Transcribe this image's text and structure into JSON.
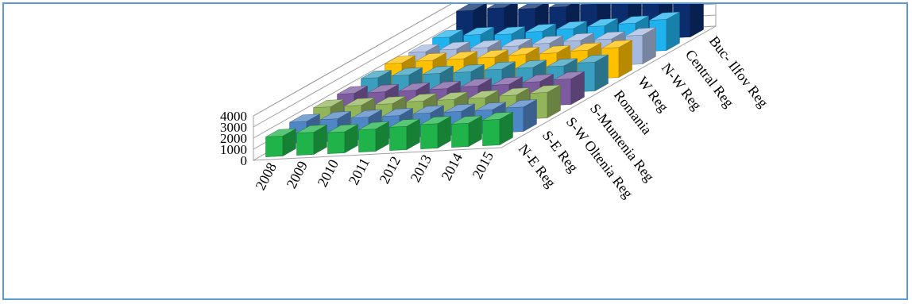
{
  "chart_data": {
    "type": "bar",
    "categories": [
      "2008",
      "2009",
      "2010",
      "2011",
      "2012",
      "2013",
      "2014",
      "2015"
    ],
    "series": [
      {
        "name": "N-E Reg",
        "color": "#1fb34a",
        "values": [
          1800,
          2000,
          1900,
          2000,
          2100,
          2200,
          2100,
          2300
        ]
      },
      {
        "name": "S-E Reg",
        "color": "#4f86c6",
        "values": [
          1900,
          2000,
          2000,
          2000,
          2100,
          2100,
          2100,
          2200
        ]
      },
      {
        "name": "S-W Oltenia Reg",
        "color": "#92b55a",
        "values": [
          2000,
          2000,
          2000,
          2100,
          2100,
          2100,
          2200,
          2300
        ]
      },
      {
        "name": "S-Muntenia Reg",
        "color": "#7b5aa0",
        "values": [
          2000,
          2000,
          2000,
          2000,
          2100,
          2100,
          2200,
          2300
        ]
      },
      {
        "name": "Romania",
        "color": "#3a9fbe",
        "values": [
          2200,
          2300,
          2300,
          2300,
          2400,
          2400,
          2400,
          2600
        ]
      },
      {
        "name": "W Reg",
        "color": "#ffc000",
        "values": [
          2300,
          2400,
          2400,
          2400,
          2500,
          2500,
          2600,
          2700
        ]
      },
      {
        "name": "N-W Reg",
        "color": "#a6b9df",
        "values": [
          2100,
          2200,
          2200,
          2200,
          2300,
          2400,
          2400,
          2600
        ]
      },
      {
        "name": "Central Reg",
        "color": "#20b2ee",
        "values": [
          2200,
          2300,
          2200,
          2300,
          2400,
          2500,
          2600,
          2800
        ]
      },
      {
        "name": "Buc- Ilfov Reg",
        "color": "#0b2d6e",
        "values": [
          3400,
          3500,
          3300,
          3300,
          3400,
          3400,
          3500,
          3700
        ]
      }
    ],
    "yticks": [
      "0",
      "1000",
      "2000",
      "3000",
      "4000"
    ],
    "ylim": [
      0,
      4000
    ],
    "grid": true,
    "legend": "none"
  }
}
